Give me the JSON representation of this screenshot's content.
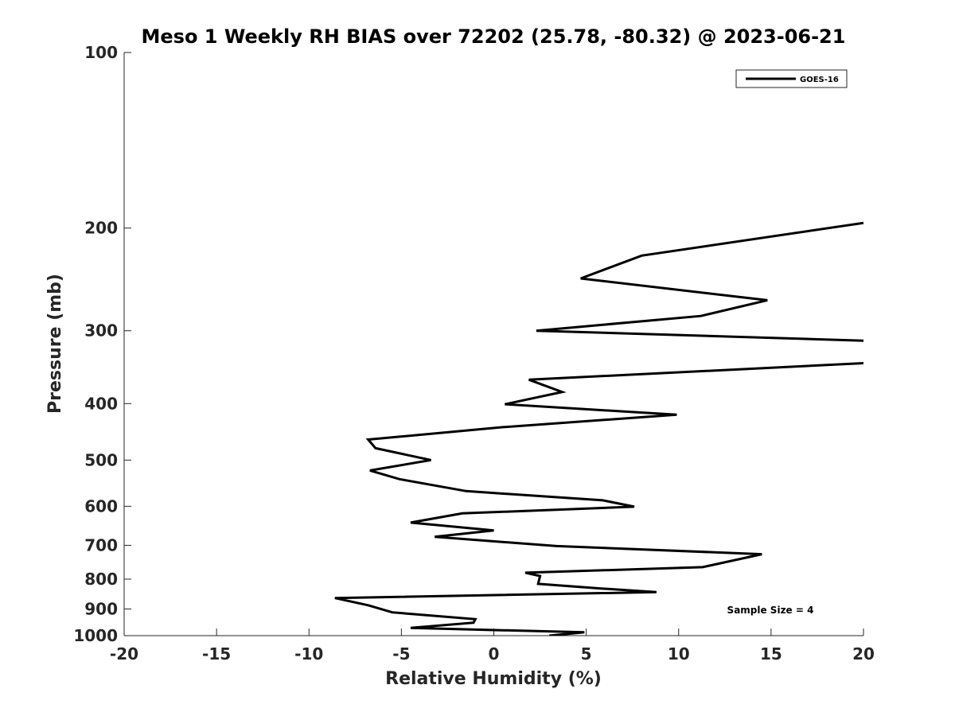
{
  "chart_data": {
    "type": "line",
    "title": "Meso 1 Weekly RH BIAS over 72202 (25.78, -80.32) @ 2023-06-21",
    "xlabel": "Relative Humidity (%)",
    "ylabel": "Pressure (mb)",
    "xlim": [
      -20,
      20
    ],
    "ylim": [
      1000,
      100
    ],
    "y_scale": "log",
    "y_reversed": true,
    "x_ticks": [
      "-20",
      "-15",
      "-10",
      "-5",
      "0",
      "5",
      "10",
      "15",
      "20"
    ],
    "y_ticks": [
      "100",
      "200",
      "300",
      "400",
      "500",
      "600",
      "700",
      "800",
      "900",
      "1000"
    ],
    "grid": false,
    "legend_position": "top-right",
    "series": [
      {
        "name": "GOES-16",
        "color": "#000000",
        "points": [
          {
            "x": 3.0,
            "y": 1000
          },
          {
            "x": 4.9,
            "y": 987
          },
          {
            "x": -4.5,
            "y": 970
          },
          {
            "x": -1.1,
            "y": 950
          },
          {
            "x": -1.0,
            "y": 937
          },
          {
            "x": -5.5,
            "y": 912
          },
          {
            "x": -6.8,
            "y": 887
          },
          {
            "x": -8.6,
            "y": 862
          },
          {
            "x": 8.8,
            "y": 842
          },
          {
            "x": 5.8,
            "y": 830
          },
          {
            "x": 2.4,
            "y": 815
          },
          {
            "x": 2.5,
            "y": 790
          },
          {
            "x": 1.7,
            "y": 780
          },
          {
            "x": 11.3,
            "y": 763
          },
          {
            "x": 14.5,
            "y": 725
          },
          {
            "x": 3.4,
            "y": 702
          },
          {
            "x": -3.2,
            "y": 677
          },
          {
            "x": -0.0,
            "y": 660
          },
          {
            "x": -4.5,
            "y": 640
          },
          {
            "x": -1.7,
            "y": 617
          },
          {
            "x": 7.6,
            "y": 601
          },
          {
            "x": 5.9,
            "y": 586
          },
          {
            "x": -1.5,
            "y": 565
          },
          {
            "x": -5.1,
            "y": 539
          },
          {
            "x": -6.7,
            "y": 521
          },
          {
            "x": -3.4,
            "y": 500
          },
          {
            "x": -6.4,
            "y": 477
          },
          {
            "x": -6.8,
            "y": 461
          },
          {
            "x": 0.5,
            "y": 439
          },
          {
            "x": 9.9,
            "y": 418
          },
          {
            "x": 0.6,
            "y": 401
          },
          {
            "x": 3.7,
            "y": 382
          },
          {
            "x": 1.9,
            "y": 364
          },
          {
            "x": 20.0,
            "y": 341
          }
        ]
      },
      {
        "name": "GOES-16",
        "color": "#000000",
        "points": [
          {
            "x": 20.0,
            "y": 312
          },
          {
            "x": 2.3,
            "y": 300
          },
          {
            "x": 11.2,
            "y": 283
          },
          {
            "x": 14.8,
            "y": 266
          },
          {
            "x": 4.7,
            "y": 244
          },
          {
            "x": 8.0,
            "y": 223
          },
          {
            "x": 20.0,
            "y": 196
          }
        ]
      }
    ],
    "legend": [
      "GOES-16"
    ],
    "annotation": "Sample Size = 4"
  }
}
